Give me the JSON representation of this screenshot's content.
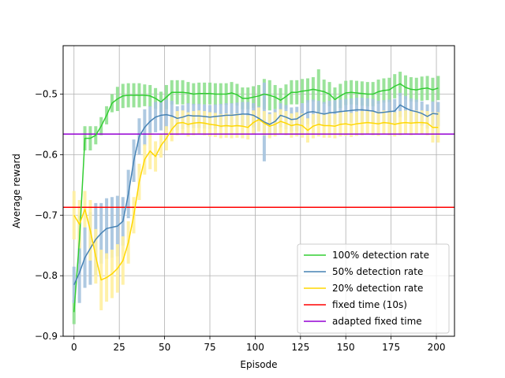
{
  "chart_data": {
    "type": "line",
    "xlabel": "Episode",
    "ylabel": "Average reward",
    "xlim": [
      -6,
      210
    ],
    "ylim": [
      -0.9,
      -0.42
    ],
    "xticks": [
      0,
      25,
      50,
      75,
      100,
      125,
      150,
      175,
      200
    ],
    "yticks": [
      -0.9,
      -0.8,
      -0.7,
      -0.6,
      -0.5
    ],
    "grid": true,
    "legend_position": "bottom-right",
    "x": [
      0,
      3,
      6,
      9,
      12,
      15,
      18,
      21,
      24,
      27,
      30,
      33,
      36,
      39,
      42,
      45,
      48,
      51,
      54,
      57,
      60,
      63,
      66,
      69,
      72,
      75,
      78,
      81,
      84,
      87,
      90,
      93,
      96,
      99,
      102,
      105,
      108,
      111,
      114,
      117,
      120,
      123,
      126,
      129,
      132,
      135,
      138,
      141,
      144,
      147,
      150,
      153,
      156,
      159,
      162,
      165,
      168,
      171,
      174,
      177,
      180,
      183,
      186,
      189,
      192,
      195,
      198,
      201
    ],
    "series": [
      {
        "name": "100% detection rate",
        "color": "#32cd32",
        "error_color": "#90e090",
        "values": [
          -0.86,
          -0.74,
          -0.573,
          -0.573,
          -0.568,
          -0.553,
          -0.535,
          -0.515,
          -0.508,
          -0.503,
          -0.502,
          -0.502,
          -0.502,
          -0.502,
          -0.503,
          -0.507,
          -0.513,
          -0.505,
          -0.497,
          -0.497,
          -0.497,
          -0.498,
          -0.5,
          -0.499,
          -0.499,
          -0.499,
          -0.5,
          -0.5,
          -0.5,
          -0.498,
          -0.501,
          -0.507,
          -0.507,
          -0.505,
          -0.503,
          -0.5,
          -0.502,
          -0.505,
          -0.51,
          -0.504,
          -0.497,
          -0.497,
          -0.495,
          -0.494,
          -0.492,
          -0.494,
          -0.496,
          -0.5,
          -0.509,
          -0.503,
          -0.498,
          -0.497,
          -0.498,
          -0.499,
          -0.5,
          -0.5,
          -0.496,
          -0.494,
          -0.493,
          -0.487,
          -0.483,
          -0.489,
          -0.492,
          -0.493,
          -0.491,
          -0.49,
          -0.493,
          -0.49
        ],
        "error": [
          0.02,
          0.04,
          0.02,
          0.02,
          0.015,
          0.015,
          0.015,
          0.015,
          0.02,
          0.02,
          0.02,
          0.02,
          0.02,
          0.018,
          0.018,
          0.017,
          0.017,
          0.02,
          0.02,
          0.02,
          0.02,
          0.018,
          0.018,
          0.018,
          0.018,
          0.018,
          0.018,
          0.018,
          0.018,
          0.018,
          0.018,
          0.018,
          0.018,
          0.018,
          0.018,
          0.025,
          0.025,
          0.02,
          0.02,
          0.02,
          0.02,
          0.02,
          0.02,
          0.02,
          0.02,
          0.035,
          0.02,
          0.02,
          0.02,
          0.02,
          0.02,
          0.02,
          0.02,
          0.02,
          0.02,
          0.02,
          0.02,
          0.02,
          0.02,
          0.02,
          0.02,
          0.02,
          0.02,
          0.02,
          0.02,
          0.02,
          0.02,
          0.02
        ]
      },
      {
        "name": "50% detection rate",
        "color": "#4682b4",
        "error_color": "#a6c4de",
        "values": [
          -0.815,
          -0.795,
          -0.77,
          -0.755,
          -0.74,
          -0.73,
          -0.722,
          -0.72,
          -0.718,
          -0.71,
          -0.665,
          -0.61,
          -0.57,
          -0.555,
          -0.545,
          -0.538,
          -0.535,
          -0.534,
          -0.536,
          -0.54,
          -0.538,
          -0.535,
          -0.536,
          -0.536,
          -0.537,
          -0.538,
          -0.537,
          -0.536,
          -0.535,
          -0.535,
          -0.534,
          -0.533,
          -0.533,
          -0.535,
          -0.54,
          -0.546,
          -0.55,
          -0.545,
          -0.535,
          -0.538,
          -0.542,
          -0.541,
          -0.535,
          -0.53,
          -0.529,
          -0.531,
          -0.533,
          -0.531,
          -0.53,
          -0.529,
          -0.528,
          -0.527,
          -0.526,
          -0.526,
          -0.527,
          -0.528,
          -0.531,
          -0.53,
          -0.529,
          -0.528,
          -0.518,
          -0.523,
          -0.527,
          -0.529,
          -0.532,
          -0.537,
          -0.532,
          -0.533
        ],
        "error": [
          0.03,
          0.05,
          0.05,
          0.06,
          0.06,
          0.05,
          0.05,
          0.05,
          0.05,
          0.04,
          0.04,
          0.035,
          0.03,
          0.03,
          0.025,
          0.025,
          0.025,
          0.025,
          0.025,
          0.02,
          0.02,
          0.02,
          0.02,
          0.02,
          0.02,
          0.02,
          0.02,
          0.02,
          0.02,
          0.02,
          0.02,
          0.02,
          0.02,
          0.02,
          0.02,
          0.065,
          0.02,
          0.02,
          0.02,
          0.02,
          0.02,
          0.02,
          0.02,
          0.02,
          0.02,
          0.02,
          0.02,
          0.02,
          0.02,
          0.02,
          0.02,
          0.02,
          0.02,
          0.02,
          0.02,
          0.02,
          0.02,
          0.02,
          0.02,
          0.02,
          0.02,
          0.02,
          0.02,
          0.02,
          0.02,
          0.02,
          0.02,
          0.02
        ]
      },
      {
        "name": "20% detection rate",
        "color": "#ffd700",
        "error_color": "#fff0a0",
        "values": [
          -0.7,
          -0.715,
          -0.69,
          -0.725,
          -0.768,
          -0.807,
          -0.803,
          -0.797,
          -0.788,
          -0.775,
          -0.745,
          -0.7,
          -0.645,
          -0.608,
          -0.594,
          -0.603,
          -0.585,
          -0.573,
          -0.558,
          -0.548,
          -0.547,
          -0.55,
          -0.548,
          -0.547,
          -0.548,
          -0.55,
          -0.551,
          -0.553,
          -0.552,
          -0.553,
          -0.552,
          -0.553,
          -0.555,
          -0.547,
          -0.542,
          -0.548,
          -0.553,
          -0.55,
          -0.545,
          -0.548,
          -0.552,
          -0.55,
          -0.552,
          -0.56,
          -0.553,
          -0.55,
          -0.552,
          -0.552,
          -0.553,
          -0.55,
          -0.549,
          -0.551,
          -0.549,
          -0.548,
          -0.547,
          -0.548,
          -0.549,
          -0.547,
          -0.548,
          -0.55,
          -0.548,
          -0.547,
          -0.548,
          -0.547,
          -0.547,
          -0.548,
          -0.555,
          -0.555
        ],
        "error": [
          0.04,
          0.04,
          0.03,
          0.05,
          0.045,
          0.05,
          0.04,
          0.04,
          0.04,
          0.04,
          0.035,
          0.03,
          0.03,
          0.025,
          0.03,
          0.025,
          0.02,
          0.02,
          0.02,
          0.02,
          0.02,
          0.02,
          0.02,
          0.02,
          0.02,
          0.02,
          0.02,
          0.02,
          0.02,
          0.02,
          0.02,
          0.02,
          0.02,
          0.02,
          0.02,
          0.02,
          0.02,
          0.02,
          0.02,
          0.02,
          0.02,
          0.02,
          0.02,
          0.02,
          0.02,
          0.02,
          0.02,
          0.02,
          0.02,
          0.02,
          0.02,
          0.02,
          0.02,
          0.02,
          0.02,
          0.02,
          0.02,
          0.02,
          0.02,
          0.02,
          0.02,
          0.02,
          0.02,
          0.02,
          0.02,
          0.02,
          0.025,
          0.025
        ]
      }
    ],
    "hlines": [
      {
        "name": "fixed time (10s)",
        "value": -0.687,
        "color": "#ff0000"
      },
      {
        "name": "adapted fixed time",
        "value": -0.566,
        "color": "#9400d3"
      }
    ]
  }
}
